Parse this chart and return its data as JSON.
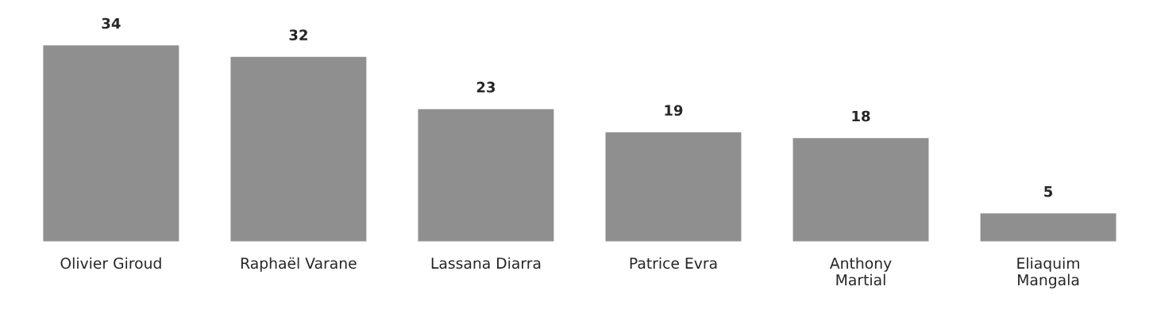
{
  "chart_data": {
    "type": "bar",
    "categories": [
      "Olivier Giroud",
      "Raphaël Varane",
      "Lassana Diarra",
      "Patrice Evra",
      "Anthony\nMartial",
      "Eliaquim\nMangala"
    ],
    "values": [
      34,
      32,
      23,
      19,
      18,
      5
    ],
    "color": "#8f8f8f",
    "data_labels": true,
    "grid": false,
    "legend": false
  }
}
